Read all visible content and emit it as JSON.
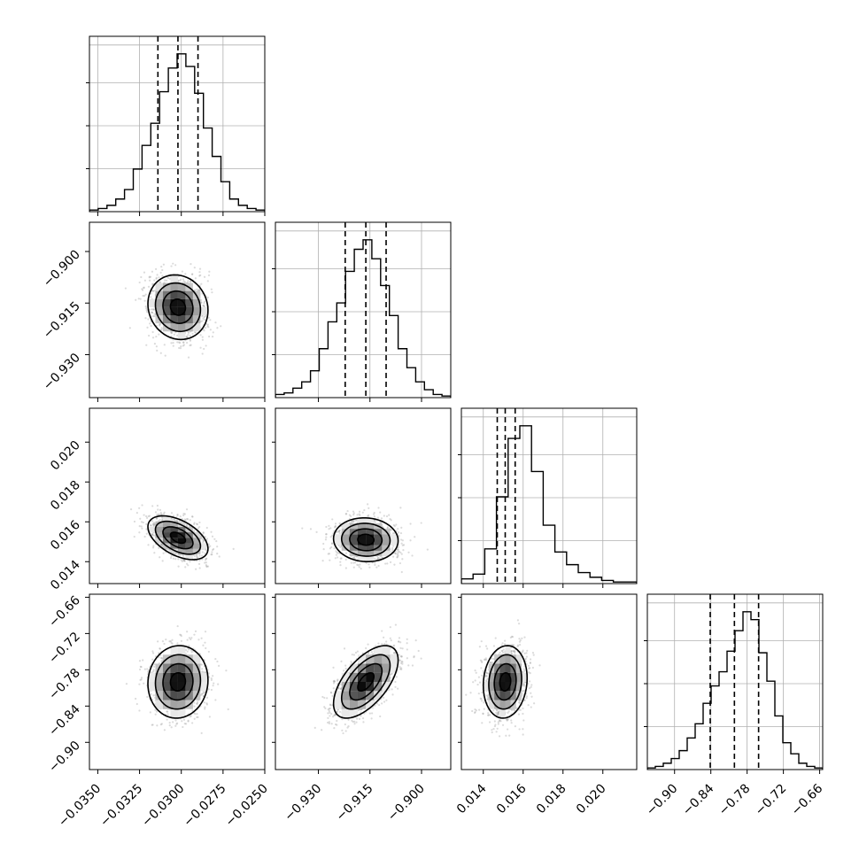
{
  "chart_data": {
    "type": "corner",
    "grid": true,
    "parameters": [
      {
        "range": [
          -0.0355,
          -0.025
        ],
        "ticks": [
          -0.035,
          -0.0325,
          -0.03,
          -0.0275,
          -0.025
        ],
        "tick_labels": [
          "−0.0350",
          "−0.0325",
          "−0.0300",
          "−0.0275",
          "−0.0250"
        ],
        "quantiles": [
          -0.0314,
          -0.0302,
          -0.029
        ],
        "hist": [
          0.01,
          0.02,
          0.04,
          0.08,
          0.14,
          0.27,
          0.42,
          0.56,
          0.76,
          0.91,
          1.0,
          0.92,
          0.75,
          0.53,
          0.35,
          0.19,
          0.08,
          0.04,
          0.02,
          0.01
        ]
      },
      {
        "range": [
          -0.9425,
          -0.8915
        ],
        "ticks": [
          -0.93,
          -0.915,
          -0.9
        ],
        "tick_labels": [
          "−0.930",
          "−0.915",
          "−0.900"
        ],
        "quantiles": [
          -0.9222,
          -0.9162,
          -0.9103
        ],
        "hist": [
          0.02,
          0.03,
          0.06,
          0.1,
          0.17,
          0.31,
          0.48,
          0.6,
          0.8,
          0.94,
          1.0,
          0.88,
          0.71,
          0.52,
          0.31,
          0.19,
          0.1,
          0.05,
          0.02,
          0.01
        ]
      },
      {
        "range": [
          0.0129,
          0.0217
        ],
        "ticks": [
          0.014,
          0.016,
          0.018,
          0.02
        ],
        "tick_labels": [
          "0.014",
          "0.016",
          "0.018",
          "0.020"
        ],
        "quantiles": [
          0.0147,
          0.0151,
          0.0156
        ],
        "hist": [
          0.03,
          0.06,
          0.22,
          0.55,
          0.92,
          1.0,
          0.71,
          0.37,
          0.2,
          0.12,
          0.07,
          0.04,
          0.02,
          0.01,
          0.01
        ]
      },
      {
        "range": [
          -0.945,
          -0.655
        ],
        "ticks": [
          -0.9,
          -0.84,
          -0.78,
          -0.72,
          -0.66
        ],
        "tick_labels": [
          "−0.90",
          "−0.84",
          "−0.78",
          "−0.72",
          "−0.66"
        ],
        "quantiles": [
          -0.841,
          -0.801,
          -0.761
        ],
        "hist": [
          0.01,
          0.02,
          0.04,
          0.07,
          0.12,
          0.2,
          0.29,
          0.42,
          0.53,
          0.62,
          0.75,
          0.88,
          1.0,
          0.95,
          0.74,
          0.56,
          0.34,
          0.17,
          0.1,
          0.04,
          0.02,
          0.01
        ]
      }
    ],
    "pairs": [
      {
        "x_param": 0,
        "y_param": 1,
        "center": [
          -0.0302,
          -0.9162
        ],
        "sigma": [
          0.0009,
          0.0047
        ],
        "rho": -0.1
      },
      {
        "x_param": 0,
        "y_param": 2,
        "center": [
          -0.0302,
          0.0152
        ],
        "sigma": [
          0.0009,
          0.00055
        ],
        "rho": -0.5
      },
      {
        "x_param": 1,
        "y_param": 2,
        "center": [
          -0.9162,
          0.0151
        ],
        "sigma": [
          0.0047,
          0.00055
        ],
        "rho": -0.05
      },
      {
        "x_param": 0,
        "y_param": 3,
        "center": [
          -0.0302,
          -0.8
        ],
        "sigma": [
          0.0009,
          0.03
        ],
        "rho": 0.05
      },
      {
        "x_param": 1,
        "y_param": 3,
        "center": [
          -0.9162,
          -0.8
        ],
        "sigma": [
          0.0047,
          0.03
        ],
        "rho": 0.6
      },
      {
        "x_param": 2,
        "y_param": 3,
        "center": [
          0.0151,
          -0.8
        ],
        "sigma": [
          0.00055,
          0.03
        ],
        "rho": 0.1
      }
    ],
    "contour_levels_sigma": [
      0.5,
      1.0,
      1.5,
      2.0
    ]
  }
}
